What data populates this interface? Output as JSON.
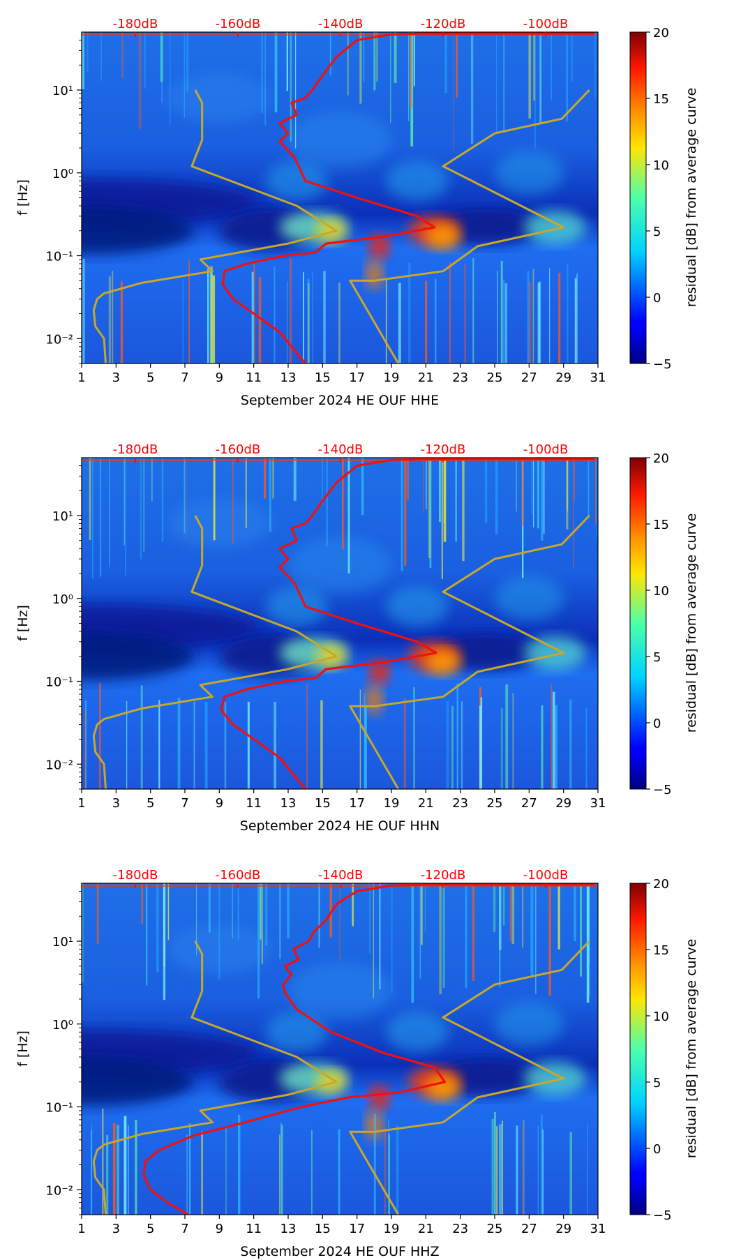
{
  "figure": {
    "colorbar_label": "residual [dB] from average curve",
    "colorbar_ticks": [
      "20",
      "15",
      "10",
      "5",
      "0",
      "−5"
    ],
    "ylabel": "f [Hz]"
  },
  "chart_data": [
    {
      "type": "heatmap",
      "title": "",
      "xlabel": "September 2024 HE OUF  HHE",
      "ylabel": "f [Hz]",
      "x_ticks": [
        "1",
        "3",
        "5",
        "7",
        "9",
        "11",
        "13",
        "15",
        "17",
        "19",
        "21",
        "23",
        "25",
        "27",
        "29",
        "31"
      ],
      "xlim": [
        1,
        31
      ],
      "y_ticks": [
        "10⁻²",
        "10⁻¹",
        "10⁰",
        "10¹"
      ],
      "ylim": [
        0.005,
        50
      ],
      "yscale": "log",
      "top_axis_ticks": [
        "-180dB",
        "-160dB",
        "-140dB",
        "-120dB",
        "-100dB"
      ],
      "top_axis_color": "#ff0000",
      "colorbar": {
        "label": "residual [dB] from average curve",
        "range": [
          -5,
          20
        ],
        "ticks": [
          20,
          15,
          10,
          5,
          0,
          -5
        ],
        "colormap": "jet"
      },
      "series": [
        {
          "color": "#ee1111",
          "x": [
            14,
            13.2,
            12.5,
            11,
            9.8,
            9.2,
            9.3,
            10.6,
            12.8,
            14.6,
            15.2,
            18.6,
            21.5,
            20.5,
            17,
            14,
            13.4,
            12.5,
            13,
            12.5,
            13.5,
            13.2,
            14,
            14.4,
            15,
            15.8,
            17,
            19,
            21,
            23,
            25,
            30.8
          ],
          "y": [
            0.005,
            0.008,
            0.012,
            0.02,
            0.03,
            0.045,
            0.065,
            0.08,
            0.1,
            0.11,
            0.14,
            0.17,
            0.22,
            0.3,
            0.5,
            0.8,
            1.5,
            2.4,
            3,
            4,
            5,
            7,
            8,
            10,
            15,
            25,
            40,
            47,
            48,
            48,
            48,
            48
          ]
        },
        {
          "color": "#c8a82a",
          "x": [
            2.4,
            2.3,
            1.8,
            1.7,
            1.9,
            2.3,
            4.5,
            8.6,
            7.9,
            13,
            15.8,
            13.5,
            7.4,
            8.0,
            8.0,
            7.6
          ],
          "y": [
            0.005,
            0.01,
            0.014,
            0.022,
            0.03,
            0.035,
            0.047,
            0.065,
            0.09,
            0.14,
            0.2,
            0.4,
            1.2,
            2.5,
            7,
            10
          ]
        },
        {
          "color": "#c8a82a",
          "x": [
            19.4,
            16.6,
            18.0,
            22.0,
            24.0,
            29.0,
            22.0,
            25.0,
            28.9,
            30.5
          ],
          "y": [
            0.005,
            0.05,
            0.05,
            0.065,
            0.13,
            0.22,
            1.2,
            3,
            4.5,
            10
          ]
        }
      ]
    },
    {
      "type": "heatmap",
      "title": "",
      "xlabel": "September 2024 HE OUF  HHN",
      "ylabel": "f [Hz]",
      "x_ticks": [
        "1",
        "3",
        "5",
        "7",
        "9",
        "11",
        "13",
        "15",
        "17",
        "19",
        "21",
        "23",
        "25",
        "27",
        "29",
        "31"
      ],
      "xlim": [
        1,
        31
      ],
      "y_ticks": [
        "10⁻²",
        "10⁻¹",
        "10⁰",
        "10¹"
      ],
      "ylim": [
        0.005,
        50
      ],
      "yscale": "log",
      "top_axis_ticks": [
        "-180dB",
        "-160dB",
        "-140dB",
        "-120dB",
        "-100dB"
      ],
      "top_axis_color": "#ff0000",
      "colorbar": {
        "label": "residual [dB] from average curve",
        "range": [
          -5,
          20
        ],
        "ticks": [
          20,
          15,
          10,
          5,
          0,
          -5
        ],
        "colormap": "jet"
      },
      "series": [
        {
          "color": "#ee1111",
          "x": [
            14,
            13.2,
            12.5,
            11,
            9.8,
            9.1,
            9.3,
            10.6,
            12.8,
            14.6,
            15.2,
            18.6,
            21.6,
            20.5,
            17,
            14,
            13.4,
            12.5,
            13,
            12.5,
            13.5,
            13.2,
            14,
            14.4,
            15,
            15.8,
            17,
            19,
            21,
            23,
            25,
            30.8
          ],
          "y": [
            0.005,
            0.008,
            0.012,
            0.02,
            0.03,
            0.045,
            0.065,
            0.08,
            0.1,
            0.11,
            0.14,
            0.17,
            0.22,
            0.3,
            0.5,
            0.8,
            1.5,
            2.4,
            3,
            4,
            5,
            7,
            8,
            10,
            15,
            25,
            40,
            47,
            48,
            48,
            48,
            48
          ]
        },
        {
          "color": "#c8a82a",
          "x": [
            2.4,
            2.3,
            1.8,
            1.7,
            1.9,
            2.3,
            4.5,
            8.6,
            7.9,
            13,
            15.8,
            13.5,
            7.4,
            8.0,
            8.0,
            7.6
          ],
          "y": [
            0.005,
            0.01,
            0.014,
            0.022,
            0.03,
            0.035,
            0.047,
            0.065,
            0.09,
            0.14,
            0.2,
            0.4,
            1.2,
            2.5,
            7,
            10
          ]
        },
        {
          "color": "#c8a82a",
          "x": [
            19.4,
            16.6,
            18.0,
            22.0,
            24.0,
            29.0,
            22.0,
            25.0,
            28.9,
            30.5
          ],
          "y": [
            0.005,
            0.05,
            0.05,
            0.065,
            0.13,
            0.22,
            1.2,
            3,
            4.5,
            10
          ]
        }
      ]
    },
    {
      "type": "heatmap",
      "title": "",
      "xlabel": "September 2024 HE OUF  HHZ",
      "ylabel": "f [Hz]",
      "x_ticks": [
        "1",
        "3",
        "5",
        "7",
        "9",
        "11",
        "13",
        "15",
        "17",
        "19",
        "21",
        "23",
        "25",
        "27",
        "29",
        "31"
      ],
      "xlim": [
        1,
        31
      ],
      "y_ticks": [
        "10⁻²",
        "10⁻¹",
        "10⁰",
        "10¹"
      ],
      "ylim": [
        0.005,
        50
      ],
      "yscale": "log",
      "top_axis_ticks": [
        "-180dB",
        "-160dB",
        "-140dB",
        "-120dB",
        "-100dB"
      ],
      "top_axis_color": "#ff0000",
      "colorbar": {
        "label": "residual [dB] from average curve",
        "range": [
          -5,
          20
        ],
        "ticks": [
          20,
          15,
          10,
          5,
          0,
          -5
        ],
        "colormap": "jet"
      },
      "series": [
        {
          "color": "#ee1111",
          "x": [
            7.2,
            6.0,
            5.0,
            4.6,
            4.7,
            5.5,
            7.5,
            10.5,
            13.8,
            16.5,
            19.5,
            22.1,
            21.5,
            18.5,
            15.5,
            13.5,
            12.8,
            12.7,
            13.2,
            12.8,
            13.6,
            13.3,
            14.2,
            14.5,
            15.2,
            15.8,
            17.0,
            19.0,
            21,
            23,
            25,
            30.8
          ],
          "y": [
            0.005,
            0.007,
            0.01,
            0.015,
            0.022,
            0.03,
            0.045,
            0.065,
            0.1,
            0.13,
            0.15,
            0.2,
            0.3,
            0.45,
            0.8,
            1.5,
            2.4,
            3,
            4,
            5,
            6,
            8,
            10,
            13,
            18,
            28,
            40,
            47,
            48,
            48,
            48,
            48
          ]
        },
        {
          "color": "#c8a82a",
          "x": [
            2.4,
            2.3,
            1.8,
            1.7,
            1.9,
            2.3,
            4.5,
            8.6,
            7.9,
            13,
            15.8,
            13.5,
            7.4,
            8.0,
            8.0,
            7.6
          ],
          "y": [
            0.005,
            0.01,
            0.014,
            0.022,
            0.03,
            0.035,
            0.047,
            0.065,
            0.09,
            0.14,
            0.2,
            0.4,
            1.2,
            2.5,
            7,
            10
          ]
        },
        {
          "color": "#c8a82a",
          "x": [
            19.4,
            16.6,
            18.0,
            22.0,
            24.0,
            29.0,
            22.0,
            25.0,
            28.9,
            30.5
          ],
          "y": [
            0.005,
            0.05,
            0.05,
            0.065,
            0.13,
            0.22,
            1.2,
            3,
            4.5,
            10
          ]
        }
      ]
    }
  ]
}
